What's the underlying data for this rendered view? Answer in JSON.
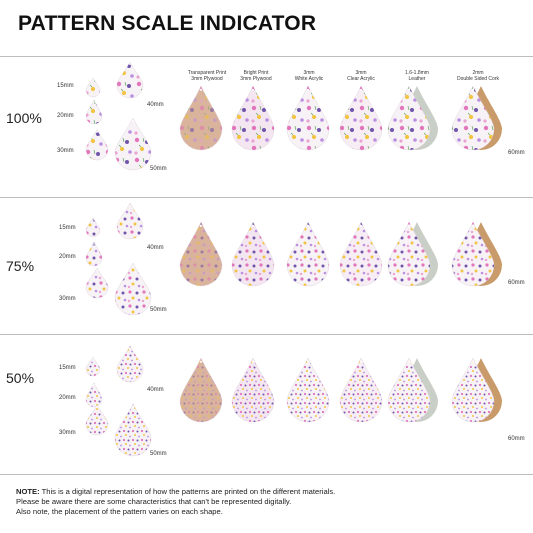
{
  "title": "PATTERN SCALE INDICATOR",
  "material_headers": [
    {
      "line1": "Transparent Print",
      "line2": "3mm Plywood"
    },
    {
      "line1": "Bright Print",
      "line2": "3mm Plywood"
    },
    {
      "line1": "3mm",
      "line2": "White Acrylic"
    },
    {
      "line1": "3mm",
      "line2": "Clear Acrylic"
    },
    {
      "line1": "1.6-1.8mm",
      "line2": "Leather"
    },
    {
      "line1": "2mm",
      "line2": "Double Sided Cork"
    }
  ],
  "rows": [
    {
      "scale": "100%",
      "sizes": [
        "15mm",
        "20mm",
        "30mm",
        "40mm",
        "50mm"
      ],
      "side_label": "60mm"
    },
    {
      "scale": "75%",
      "sizes": [
        "15mm",
        "20mm",
        "30mm",
        "40mm",
        "50mm"
      ],
      "side_label": "60mm"
    },
    {
      "scale": "50%",
      "sizes": [
        "15mm",
        "20mm",
        "30mm",
        "40mm",
        "50mm"
      ],
      "side_label": "60mm"
    }
  ],
  "note": {
    "label": "NOTE:",
    "text": "This is a digital representation of how the patterns are printed on the different materials.",
    "line2": "Please be aware there are some characteristics that can't be represented digitally.",
    "line3": "Also note, the placement of the pattern varies on each shape."
  },
  "colors": {
    "plywood": "#d9b39c",
    "bright": "#f3e6f0",
    "white": "#f7f2f6",
    "clear": "#f6eef4",
    "leather_back": "#c9cfc6",
    "cork_back": "#c99a6a",
    "divider": "#bdbdbd"
  }
}
